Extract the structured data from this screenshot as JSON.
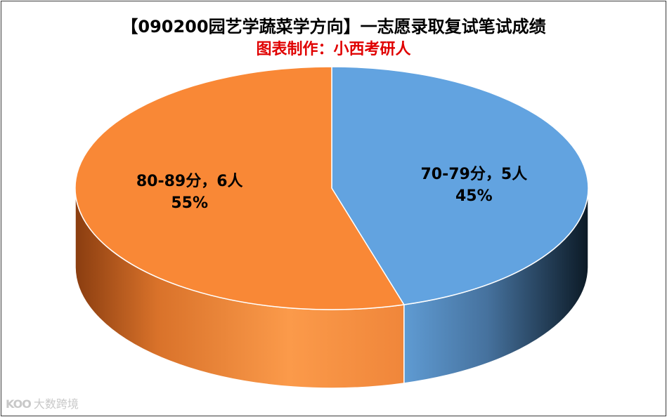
{
  "title": "【090200园艺学蔬菜学方向】一志愿录取复试笔试成绩",
  "subtitle": "图表制作：小西考研人",
  "watermark": {
    "logo": "KOO",
    "text": "大数跨境"
  },
  "chart_data": {
    "type": "pie",
    "title": "【090200园艺学蔬菜学方向】一志愿录取复试笔试成绩",
    "subtitle": "图表制作：小西考研人",
    "style": "3d",
    "slices": [
      {
        "label": "70-79分",
        "value": 5,
        "percent": "45%",
        "data_label": "70-79分，5人",
        "color": "#62a3e0"
      },
      {
        "label": "80-89分",
        "value": 6,
        "percent": "55%",
        "data_label": "80-89分，6人",
        "color": "#f98836"
      }
    ]
  }
}
